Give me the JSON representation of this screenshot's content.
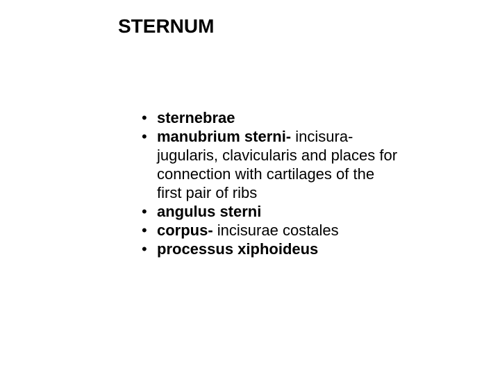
{
  "title": {
    "text": "STERNUM",
    "fontsize": 28,
    "fontweight": "bold",
    "color": "#000000"
  },
  "content": {
    "fontsize": 22,
    "line_height": 27,
    "color": "#000000",
    "bullets": [
      {
        "bold": "sternebrae",
        "rest": ""
      },
      {
        "bold": "manubrium sterni- ",
        "rest": "incisura- jugularis, clavicularis and places for connection with cartilages of the first pair of ribs"
      },
      {
        "bold": "angulus sterni",
        "rest": ""
      },
      {
        "bold": "corpus- ",
        "rest": "incisurae costales"
      },
      {
        "bold": "processus xiphoideus",
        "rest": ""
      }
    ]
  },
  "background_color": "#ffffff"
}
